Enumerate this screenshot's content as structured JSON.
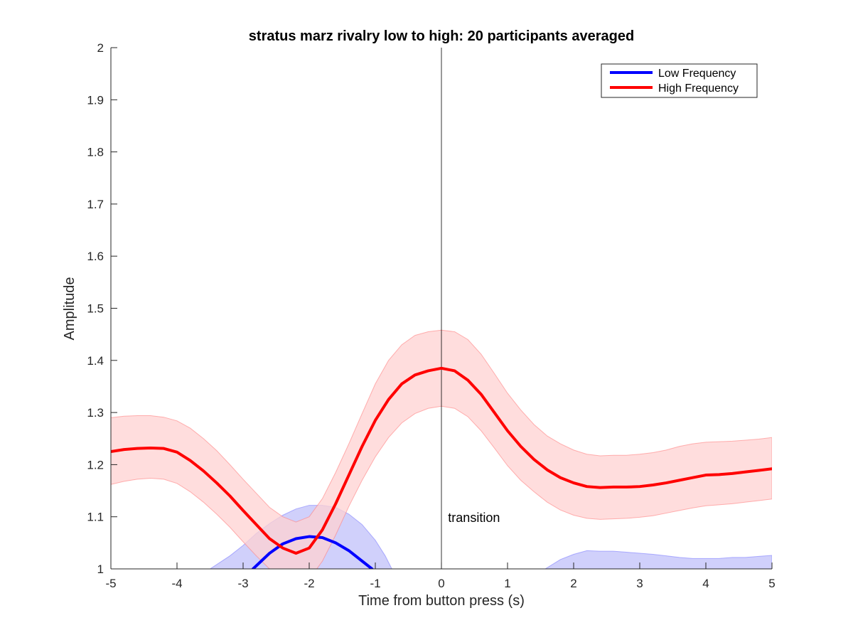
{
  "chart_data": {
    "type": "line",
    "title": "stratus marz rivalry low to high: 20 participants averaged",
    "xlabel": "Time from button press (s)",
    "ylabel": "Amplitude",
    "xlim": [
      -5,
      5
    ],
    "ylim": [
      1,
      2
    ],
    "xticks": [
      "-5",
      "-4",
      "-3",
      "-2",
      "-1",
      "0",
      "1",
      "2",
      "3",
      "4",
      "5"
    ],
    "yticks": [
      "1",
      "1.1",
      "1.2",
      "1.3",
      "1.4",
      "1.5",
      "1.6",
      "1.7",
      "1.8",
      "1.9",
      "2"
    ],
    "grid": false,
    "legend_position": "top-right",
    "annotation": {
      "text": "transition",
      "x": 0.1,
      "y": 1.09
    },
    "vertical_line_x": 0,
    "series": [
      {
        "name": "Low Frequency",
        "color": "#0000ff",
        "band_color": "#c8c8fa",
        "x": [
          -2.85,
          -2.6,
          -2.4,
          -2.2,
          -2.0,
          -1.8,
          -1.6,
          -1.4,
          -1.2,
          -1.05
        ],
        "y": [
          1.0,
          1.03,
          1.048,
          1.058,
          1.062,
          1.06,
          1.05,
          1.035,
          1.015,
          1.0
        ],
        "x_band": [
          -3.5,
          -3.2,
          -3.0,
          -2.8,
          -2.6,
          -2.4,
          -2.2,
          -2.0,
          -1.8,
          -1.6,
          -1.4,
          -1.2,
          -1.0,
          -0.85,
          -0.75
        ],
        "band_upper": [
          1.0,
          1.025,
          1.045,
          1.068,
          1.087,
          1.103,
          1.115,
          1.122,
          1.122,
          1.118,
          1.105,
          1.085,
          1.055,
          1.025,
          1.0
        ],
        "x_band2": [
          1.57,
          1.8,
          2.0,
          2.2,
          2.4,
          2.6,
          2.8,
          3.0,
          3.2,
          3.4,
          3.6,
          3.8,
          4.0,
          4.2,
          4.4,
          4.6,
          4.8,
          5.0
        ],
        "band2_upper": [
          1.0,
          1.018,
          1.028,
          1.035,
          1.034,
          1.034,
          1.032,
          1.03,
          1.028,
          1.025,
          1.022,
          1.02,
          1.02,
          1.02,
          1.022,
          1.022,
          1.024,
          1.026
        ]
      },
      {
        "name": "High Frequency",
        "color": "#ff0000",
        "band_color": "#ffd2d2",
        "x": [
          -5.0,
          -4.8,
          -4.6,
          -4.4,
          -4.2,
          -4.0,
          -3.8,
          -3.6,
          -3.4,
          -3.2,
          -3.0,
          -2.8,
          -2.6,
          -2.4,
          -2.2,
          -2.0,
          -1.8,
          -1.6,
          -1.4,
          -1.2,
          -1.0,
          -0.8,
          -0.6,
          -0.4,
          -0.2,
          0.0,
          0.2,
          0.4,
          0.6,
          0.8,
          1.0,
          1.2,
          1.4,
          1.6,
          1.8,
          2.0,
          2.2,
          2.4,
          2.6,
          2.8,
          3.0,
          3.2,
          3.4,
          3.6,
          3.8,
          4.0,
          4.2,
          4.4,
          4.6,
          4.8,
          5.0
        ],
        "y": [
          1.225,
          1.229,
          1.231,
          1.232,
          1.231,
          1.224,
          1.208,
          1.188,
          1.165,
          1.14,
          1.112,
          1.085,
          1.058,
          1.04,
          1.03,
          1.04,
          1.075,
          1.125,
          1.18,
          1.235,
          1.285,
          1.325,
          1.355,
          1.372,
          1.38,
          1.385,
          1.38,
          1.362,
          1.335,
          1.3,
          1.265,
          1.235,
          1.21,
          1.19,
          1.175,
          1.165,
          1.158,
          1.156,
          1.157,
          1.157,
          1.158,
          1.161,
          1.165,
          1.17,
          1.175,
          1.18,
          1.181,
          1.183,
          1.186,
          1.189,
          1.192
        ],
        "band_lower": [
          1.162,
          1.168,
          1.172,
          1.174,
          1.172,
          1.164,
          1.148,
          1.128,
          1.105,
          1.08,
          1.052,
          1.025,
          1.0,
          0.98,
          0.97,
          0.98,
          1.015,
          1.065,
          1.12,
          1.17,
          1.215,
          1.252,
          1.28,
          1.298,
          1.308,
          1.312,
          1.308,
          1.292,
          1.265,
          1.232,
          1.198,
          1.17,
          1.148,
          1.128,
          1.113,
          1.103,
          1.097,
          1.095,
          1.096,
          1.097,
          1.099,
          1.102,
          1.107,
          1.112,
          1.117,
          1.121,
          1.123,
          1.125,
          1.128,
          1.131,
          1.134
        ],
        "band_upper": [
          1.29,
          1.293,
          1.294,
          1.294,
          1.291,
          1.284,
          1.27,
          1.25,
          1.227,
          1.2,
          1.172,
          1.145,
          1.118,
          1.1,
          1.09,
          1.1,
          1.135,
          1.185,
          1.24,
          1.298,
          1.355,
          1.4,
          1.43,
          1.448,
          1.455,
          1.458,
          1.455,
          1.44,
          1.412,
          1.375,
          1.337,
          1.305,
          1.277,
          1.255,
          1.24,
          1.228,
          1.22,
          1.217,
          1.218,
          1.218,
          1.22,
          1.223,
          1.228,
          1.235,
          1.24,
          1.243,
          1.244,
          1.245,
          1.247,
          1.249,
          1.252
        ]
      }
    ]
  }
}
